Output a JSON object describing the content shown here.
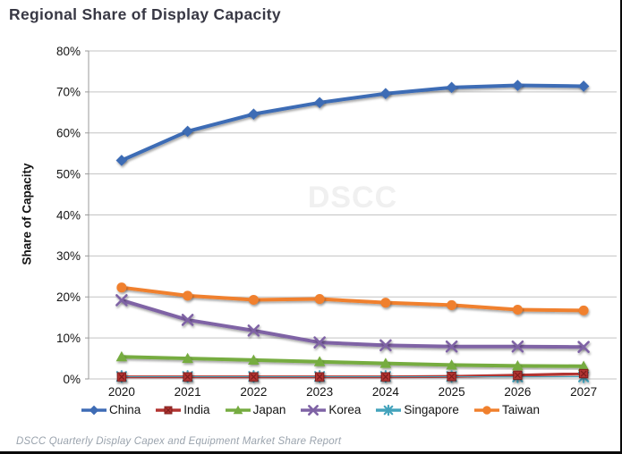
{
  "title": "Regional Share of Display Capacity",
  "watermark": "DSCC",
  "footer": "DSCC Quarterly Display Capex and Equipment Market Share Report",
  "chart_data": {
    "type": "line",
    "title": "Regional Share of Display Capacity",
    "xlabel": "",
    "ylabel": "Share of Capacity",
    "ylim": [
      0,
      80
    ],
    "y_tick_step": 10,
    "y_tick_format": "percent",
    "grid": true,
    "legend_position": "bottom",
    "categories": [
      "2020",
      "2021",
      "2022",
      "2023",
      "2024",
      "2025",
      "2026",
      "2027"
    ],
    "series": [
      {
        "name": "China",
        "color": "#3E6CB5",
        "marker": "diamond",
        "values": [
          53.3,
          60.4,
          64.6,
          67.4,
          69.6,
          71.1,
          71.6,
          71.4
        ]
      },
      {
        "name": "India",
        "color": "#B23431",
        "marker": "square",
        "values": [
          0.5,
          0.5,
          0.5,
          0.5,
          0.5,
          0.6,
          0.9,
          1.3
        ]
      },
      {
        "name": "Japan",
        "color": "#76AC41",
        "marker": "triangle",
        "values": [
          5.4,
          5.0,
          4.6,
          4.2,
          3.8,
          3.4,
          3.2,
          3.1
        ]
      },
      {
        "name": "Korea",
        "color": "#7F63A5",
        "marker": "x",
        "values": [
          19.2,
          14.4,
          11.8,
          8.9,
          8.2,
          7.9,
          7.9,
          7.8
        ]
      },
      {
        "name": "Singapore",
        "color": "#44A3BC",
        "marker": "star",
        "values": [
          0.6,
          0.6,
          0.6,
          0.6,
          0.6,
          0.6,
          0.5,
          0.5
        ]
      },
      {
        "name": "Taiwan",
        "color": "#F0802D",
        "marker": "circle",
        "values": [
          22.3,
          20.3,
          19.3,
          19.5,
          18.6,
          18.0,
          16.9,
          16.7
        ]
      }
    ]
  }
}
